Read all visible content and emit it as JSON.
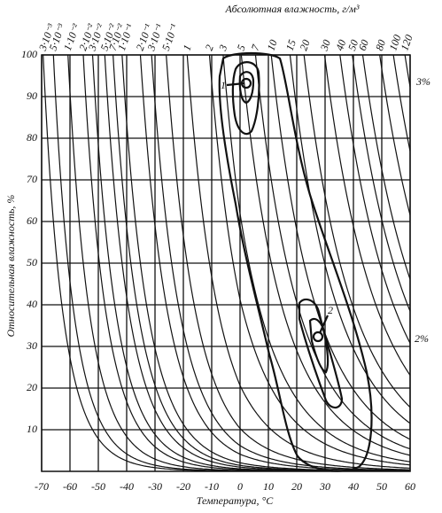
{
  "chart_data": {
    "type": "line",
    "title": "Абсолютная влажность, г/м³",
    "xlabel": "Температура, °C",
    "ylabel": "Относительная влажность, %",
    "xlim": [
      -70,
      60
    ],
    "xticks": [
      -70,
      -60,
      -50,
      -40,
      -30,
      -20,
      -10,
      0,
      10,
      20,
      30,
      40,
      50,
      60
    ],
    "ylim": [
      0,
      100
    ],
    "yticks": [
      10,
      20,
      30,
      40,
      50,
      60,
      70,
      80,
      90,
      100
    ],
    "grid": true,
    "color": "#111111",
    "top_ticks": [
      {
        "value": 0.003,
        "label": "3·10⁻³"
      },
      {
        "value": 0.005,
        "label": "5·10⁻³"
      },
      {
        "value": 0.01,
        "label": "1·10⁻²"
      },
      {
        "value": 0.02,
        "label": "2·10⁻²"
      },
      {
        "value": 0.03,
        "label": "3·10⁻²"
      },
      {
        "value": 0.05,
        "label": "5·10⁻²"
      },
      {
        "value": 0.07,
        "label": "7·10⁻²"
      },
      {
        "value": 0.1,
        "label": "1·10⁻¹"
      },
      {
        "value": 0.2,
        "label": "2·10⁻¹"
      },
      {
        "value": 0.3,
        "label": "3·10⁻¹"
      },
      {
        "value": 0.5,
        "label": "5·10⁻¹"
      },
      1,
      2,
      3,
      5,
      7,
      10,
      15,
      20,
      30,
      40,
      50,
      60,
      80,
      100,
      120
    ],
    "annotations": [
      "1",
      "2",
      "3%",
      "2%"
    ]
  }
}
